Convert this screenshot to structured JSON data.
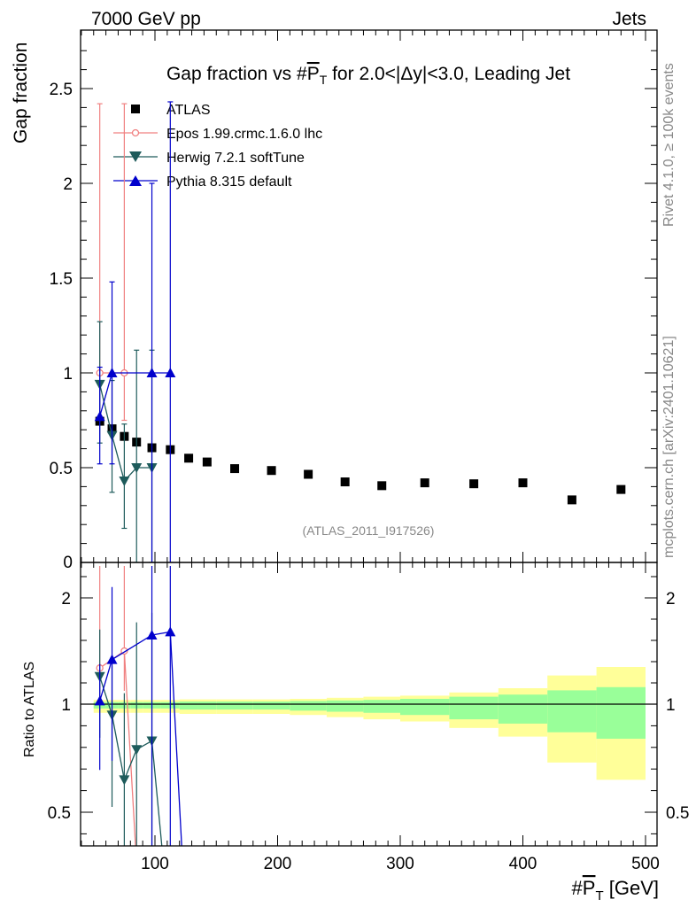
{
  "header": {
    "left_label": "7000 GeV pp",
    "right_label": "Jets",
    "side_top": "Rivet 4.1.0, ≥ 100k events",
    "side_bottom": "mcplots.cern.ch [arXiv:2401.10621]"
  },
  "chart_data": {
    "type": "scatter",
    "title": "Gap fraction vs #P̅T for 2.0<|Δy|<3.0, Leading Jet",
    "title_parts": [
      "Gap fraction vs #",
      "P",
      "T",
      " for 2.0<|Δy|<3.0, Leading Jet"
    ],
    "xlabel_parts": [
      "#",
      "P",
      "T",
      " [GeV]"
    ],
    "ylabel": "Gap fraction",
    "ratio_ylabel": "Ratio to ATLAS",
    "reference": "(ATLAS_2011_I917526)",
    "xlim": [
      40,
      500
    ],
    "ylim": [
      0,
      2.8
    ],
    "ratio_ylim": [
      0.35,
      2.3
    ],
    "x_ticks": [
      100,
      200,
      300,
      400,
      500
    ],
    "x_tick_labels": [
      "100",
      "200",
      "300",
      "400",
      "500"
    ],
    "y_ticks": [
      0.5,
      1,
      1.5,
      2,
      2.5
    ],
    "y_tick_labels": [
      "0.5",
      "1",
      "1.5",
      "2",
      "2.5"
    ],
    "y_zero_label": "0",
    "ratio_y_ticks": [
      0.5,
      1,
      2
    ],
    "ratio_y_tick_labels": [
      "0.5",
      "1",
      "2"
    ],
    "series": [
      {
        "name": "ATLAS",
        "style": "data",
        "color": "#000000",
        "x": [
          55,
          65,
          75,
          85,
          97.5,
          112.5,
          127.5,
          142.5,
          165,
          195,
          225,
          255,
          285,
          320,
          360,
          400,
          440,
          480
        ],
        "y": [
          0.745,
          0.705,
          0.665,
          0.635,
          0.605,
          0.595,
          0.55,
          0.53,
          0.495,
          0.485,
          0.465,
          0.425,
          0.405,
          0.42,
          0.415,
          0.42,
          0.33,
          0.385
        ],
        "xlo": [
          50,
          60,
          70,
          80,
          90,
          105,
          120,
          135,
          150,
          180,
          210,
          240,
          270,
          300,
          340,
          380,
          420,
          460
        ],
        "xhi": [
          60,
          70,
          80,
          90,
          105,
          120,
          135,
          150,
          180,
          210,
          240,
          270,
          300,
          340,
          380,
          420,
          460,
          500
        ],
        "band_inner": [
          0.02,
          0.02,
          0.02,
          0.02,
          0.02,
          0.02,
          0.025,
          0.025,
          0.025,
          0.025,
          0.03,
          0.035,
          0.04,
          0.05,
          0.07,
          0.09,
          0.13,
          0.16
        ],
        "band_outer": [
          0.04,
          0.04,
          0.04,
          0.04,
          0.04,
          0.04,
          0.045,
          0.045,
          0.045,
          0.045,
          0.05,
          0.06,
          0.07,
          0.08,
          0.11,
          0.15,
          0.27,
          0.35
        ]
      },
      {
        "name": "Epos 1.99.crmc.1.6.0 lhc",
        "style": "open-circle",
        "color": "#f08080",
        "x": [
          55,
          75
        ],
        "y": [
          1.0,
          1.0
        ],
        "elo": [
          0.75,
          0.75
        ],
        "ehi": [
          2.42,
          2.42
        ],
        "ratio": [
          1.34,
          1.5
        ]
      },
      {
        "name": "Herwig 7.2.1 softTune",
        "style": "triangle-down",
        "color": "#1e5b5b",
        "x": [
          55,
          65,
          75,
          85,
          97.5
        ],
        "y": [
          0.94,
          0.67,
          0.43,
          0.5,
          0.5
        ],
        "elo": [
          0.63,
          0.37,
          0.18,
          0.0,
          0.0
        ],
        "ehi": [
          1.27,
          0.96,
          0.73,
          1.12,
          1.12
        ],
        "ratio": [
          1.26,
          0.95,
          0.65,
          0.79,
          0.83
        ]
      },
      {
        "name": "Pythia 8.315 default",
        "style": "triangle-up",
        "color": "#0000cc",
        "x": [
          55,
          65,
          97.5,
          112.5
        ],
        "y": [
          0.77,
          1.0,
          1.0,
          1.0
        ],
        "elo": [
          0.52,
          0.52,
          0.0,
          0.0
        ],
        "ehi": [
          1.03,
          1.48,
          2.0,
          2.43
        ],
        "ratio": [
          1.03,
          1.42,
          1.65,
          1.68
        ]
      }
    ]
  }
}
